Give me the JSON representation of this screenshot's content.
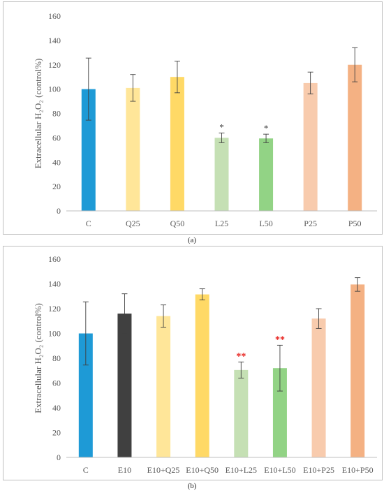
{
  "chart_data": [
    {
      "type": "bar",
      "caption": "(a)",
      "ylabel": "Extracellular H₂O₂ (control%)",
      "ylim": [
        0,
        160
      ],
      "yticks": [
        0,
        20,
        40,
        60,
        80,
        100,
        120,
        140,
        160
      ],
      "categories": [
        "C",
        "Q25",
        "Q50",
        "L25",
        "L50",
        "P25",
        "P50"
      ],
      "values": [
        100,
        101,
        110,
        60,
        59.5,
        105,
        120
      ],
      "errors": [
        25.5,
        11,
        13,
        4,
        3.5,
        9,
        14
      ],
      "colors": [
        "#1e9ad6",
        "#ffe699",
        "#ffd966",
        "#c5e0b4",
        "#92d385",
        "#f8cbad",
        "#f4b183"
      ],
      "annotations": [
        "",
        "",
        "",
        "*",
        "*",
        "",
        ""
      ],
      "annotation_color": "#404040",
      "grid": false
    },
    {
      "type": "bar",
      "caption": "(b)",
      "ylabel": "Extracellular H₂O₂ (control%)",
      "ylim": [
        0,
        160
      ],
      "yticks": [
        0,
        20,
        40,
        60,
        80,
        100,
        120,
        140,
        160
      ],
      "categories": [
        "C",
        "E10",
        "E10+Q25",
        "E10+Q50",
        "E10+L25",
        "E10+L50",
        "E10+P25",
        "E10+P50"
      ],
      "values": [
        100,
        116,
        114,
        131.5,
        70.5,
        72,
        112,
        139.5
      ],
      "errors": [
        25.5,
        16,
        9,
        4.5,
        6.5,
        18.5,
        8,
        5.5
      ],
      "colors": [
        "#1e9ad6",
        "#404040",
        "#ffe699",
        "#ffd966",
        "#c5e0b4",
        "#92d385",
        "#f8cbad",
        "#f4b183"
      ],
      "annotations": [
        "",
        "",
        "",
        "",
        "**",
        "**",
        "",
        ""
      ],
      "annotation_color": "#e8231f",
      "grid": false
    }
  ]
}
